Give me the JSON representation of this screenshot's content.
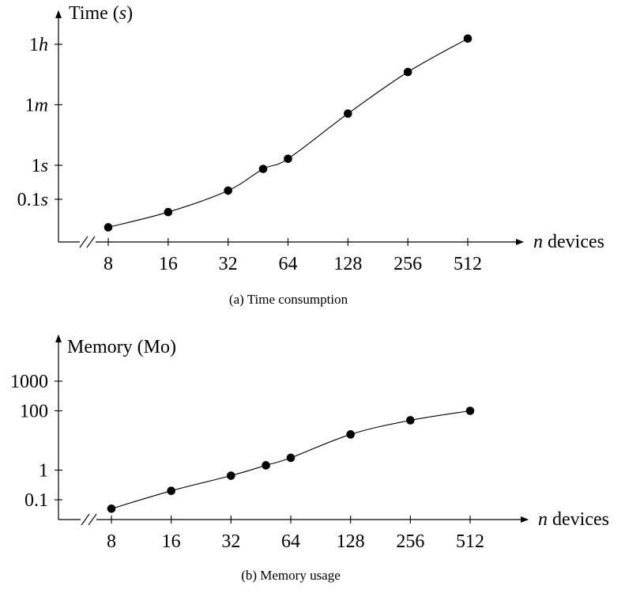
{
  "chart_data": [
    {
      "type": "line",
      "caption": "(a) Time consumption",
      "ylabel_text": "Time (",
      "ylabel_unit": "s",
      "ylabel_close": ")",
      "xlabel_var": "n",
      "xlabel_text": " devices",
      "x_scale": "log2",
      "y_scale": "log10",
      "x_ticks": [
        "8",
        "16",
        "32",
        "64",
        "128",
        "256",
        "512"
      ],
      "x_tick_values": [
        8,
        16,
        32,
        64,
        128,
        256,
        512
      ],
      "y_ticks": [
        {
          "num": "0.1",
          "unit": "s",
          "seconds": 0.1
        },
        {
          "num": "1",
          "unit": "s",
          "seconds": 1
        },
        {
          "num": "1",
          "unit": "m",
          "seconds": 60
        },
        {
          "num": "1",
          "unit": "h",
          "seconds": 3600
        }
      ],
      "series": [
        {
          "x": [
            8,
            16,
            32,
            48,
            64,
            128,
            256,
            512
          ],
          "y": [
            0.015,
            0.042,
            0.18,
            0.78,
            1.55,
            33,
            550,
            5300
          ]
        }
      ],
      "axis_break": true,
      "grid": false
    },
    {
      "type": "line",
      "caption": "(b) Memory usage",
      "ylabel_text": "Memory (Mo)",
      "xlabel_var": "n",
      "xlabel_text": " devices",
      "x_scale": "log2",
      "y_scale": "log10",
      "x_ticks": [
        "8",
        "16",
        "32",
        "64",
        "128",
        "256",
        "512"
      ],
      "x_tick_values": [
        8,
        16,
        32,
        64,
        128,
        256,
        512
      ],
      "y_ticks": [
        {
          "num": "0.1",
          "value": 0.1
        },
        {
          "num": "1",
          "value": 1
        },
        {
          "num": "100",
          "value": 100
        },
        {
          "num": "1000",
          "value": 1000
        }
      ],
      "series": [
        {
          "x": [
            8,
            16,
            32,
            48,
            64,
            128,
            256,
            512
          ],
          "y": [
            0.05,
            0.2,
            0.65,
            1.45,
            2.6,
            16,
            48,
            100
          ]
        }
      ],
      "axis_break": true,
      "grid": false
    }
  ]
}
